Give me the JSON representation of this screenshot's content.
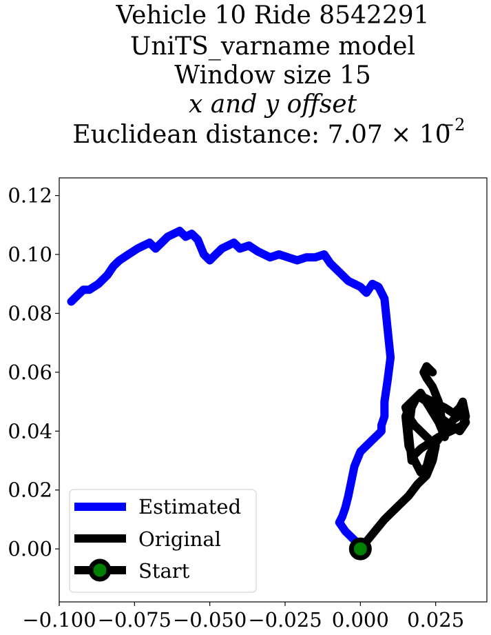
{
  "chart_data": {
    "type": "line",
    "title_lines": [
      "Vehicle 10 Ride 8542291",
      "UniTS_varname model",
      "Window size 15",
      "x and y offset",
      "Euclidean distance: 7.07 × 10",
      "−2"
    ],
    "xlabel": "",
    "ylabel": "",
    "xlim": [
      -0.1,
      0.042
    ],
    "ylim": [
      -0.018,
      0.126
    ],
    "x_ticks": [
      -0.1,
      -0.075,
      -0.05,
      -0.025,
      0.0,
      0.025
    ],
    "x_tick_labels": [
      "−0.100",
      "−0.075",
      "−0.050",
      "−0.025",
      "0.000",
      "0.025"
    ],
    "y_ticks": [
      0.0,
      0.02,
      0.04,
      0.06,
      0.08,
      0.1,
      0.12
    ],
    "y_tick_labels": [
      "0.00",
      "0.02",
      "0.04",
      "0.06",
      "0.08",
      "0.10",
      "0.12"
    ],
    "grid": false,
    "legend_position": "lower-left",
    "legend": [
      "Estimated",
      "Original",
      "Start"
    ],
    "series": [
      {
        "name": "Estimated",
        "color": "#0000ff",
        "x": [
          -0.096,
          -0.094,
          -0.092,
          -0.09,
          -0.087,
          -0.084,
          -0.082,
          -0.08,
          -0.077,
          -0.074,
          -0.072,
          -0.07,
          -0.068,
          -0.066,
          -0.064,
          -0.062,
          -0.06,
          -0.058,
          -0.056,
          -0.054,
          -0.052,
          -0.05,
          -0.048,
          -0.046,
          -0.044,
          -0.042,
          -0.04,
          -0.037,
          -0.034,
          -0.032,
          -0.03,
          -0.027,
          -0.024,
          -0.021,
          -0.018,
          -0.015,
          -0.012,
          -0.01,
          -0.008,
          -0.006,
          -0.004,
          -0.002,
          0.0,
          0.002,
          0.004,
          0.006,
          0.008,
          0.009,
          0.01,
          0.009,
          0.008,
          0.008,
          0.007,
          0.007,
          0.006,
          0.005,
          0.004,
          0.002,
          0.0,
          -0.002,
          -0.003,
          -0.004,
          -0.005,
          -0.006,
          -0.007,
          -0.005,
          -0.003,
          -0.001,
          0.0
        ],
        "y": [
          0.084,
          0.086,
          0.088,
          0.088,
          0.09,
          0.093,
          0.096,
          0.098,
          0.1,
          0.102,
          0.103,
          0.104,
          0.102,
          0.104,
          0.106,
          0.107,
          0.108,
          0.106,
          0.107,
          0.105,
          0.1,
          0.098,
          0.1,
          0.102,
          0.103,
          0.104,
          0.102,
          0.103,
          0.101,
          0.1,
          0.099,
          0.1,
          0.099,
          0.098,
          0.099,
          0.099,
          0.1,
          0.097,
          0.095,
          0.093,
          0.091,
          0.09,
          0.089,
          0.087,
          0.09,
          0.089,
          0.085,
          0.075,
          0.065,
          0.057,
          0.05,
          0.045,
          0.042,
          0.04,
          0.039,
          0.038,
          0.037,
          0.035,
          0.033,
          0.028,
          0.023,
          0.018,
          0.014,
          0.011,
          0.009,
          0.006,
          0.004,
          0.002,
          0.0
        ]
      },
      {
        "name": "Original",
        "color": "#000000",
        "x": [
          0.0,
          0.004,
          0.008,
          0.012,
          0.016,
          0.019,
          0.022,
          0.024,
          0.025,
          0.022,
          0.018,
          0.016,
          0.015,
          0.017,
          0.02,
          0.024,
          0.028,
          0.031,
          0.033,
          0.034,
          0.035,
          0.034,
          0.03,
          0.026,
          0.023,
          0.02,
          0.018,
          0.017,
          0.016,
          0.017,
          0.019,
          0.022,
          0.026,
          0.03,
          0.033,
          0.035,
          0.034,
          0.031,
          0.028,
          0.025,
          0.023,
          0.022,
          0.02,
          0.018,
          0.016,
          0.015,
          0.017,
          0.02,
          0.023,
          0.026,
          0.028,
          0.026,
          0.024,
          0.022,
          0.021,
          0.022,
          0.024
        ],
        "y": [
          0.0,
          0.005,
          0.01,
          0.014,
          0.018,
          0.022,
          0.025,
          0.03,
          0.035,
          0.038,
          0.042,
          0.045,
          0.048,
          0.05,
          0.052,
          0.05,
          0.048,
          0.046,
          0.048,
          0.05,
          0.045,
          0.042,
          0.04,
          0.038,
          0.036,
          0.034,
          0.032,
          0.03,
          0.04,
          0.048,
          0.052,
          0.05,
          0.045,
          0.042,
          0.04,
          0.043,
          0.046,
          0.044,
          0.04,
          0.036,
          0.032,
          0.028,
          0.026,
          0.03,
          0.035,
          0.045,
          0.05,
          0.053,
          0.048,
          0.043,
          0.038,
          0.05,
          0.055,
          0.058,
          0.06,
          0.062,
          0.06
        ]
      }
    ],
    "start_point": {
      "name": "Start",
      "x": 0.0,
      "y": 0.0,
      "fill": "#008000",
      "edge": "#000000"
    }
  }
}
